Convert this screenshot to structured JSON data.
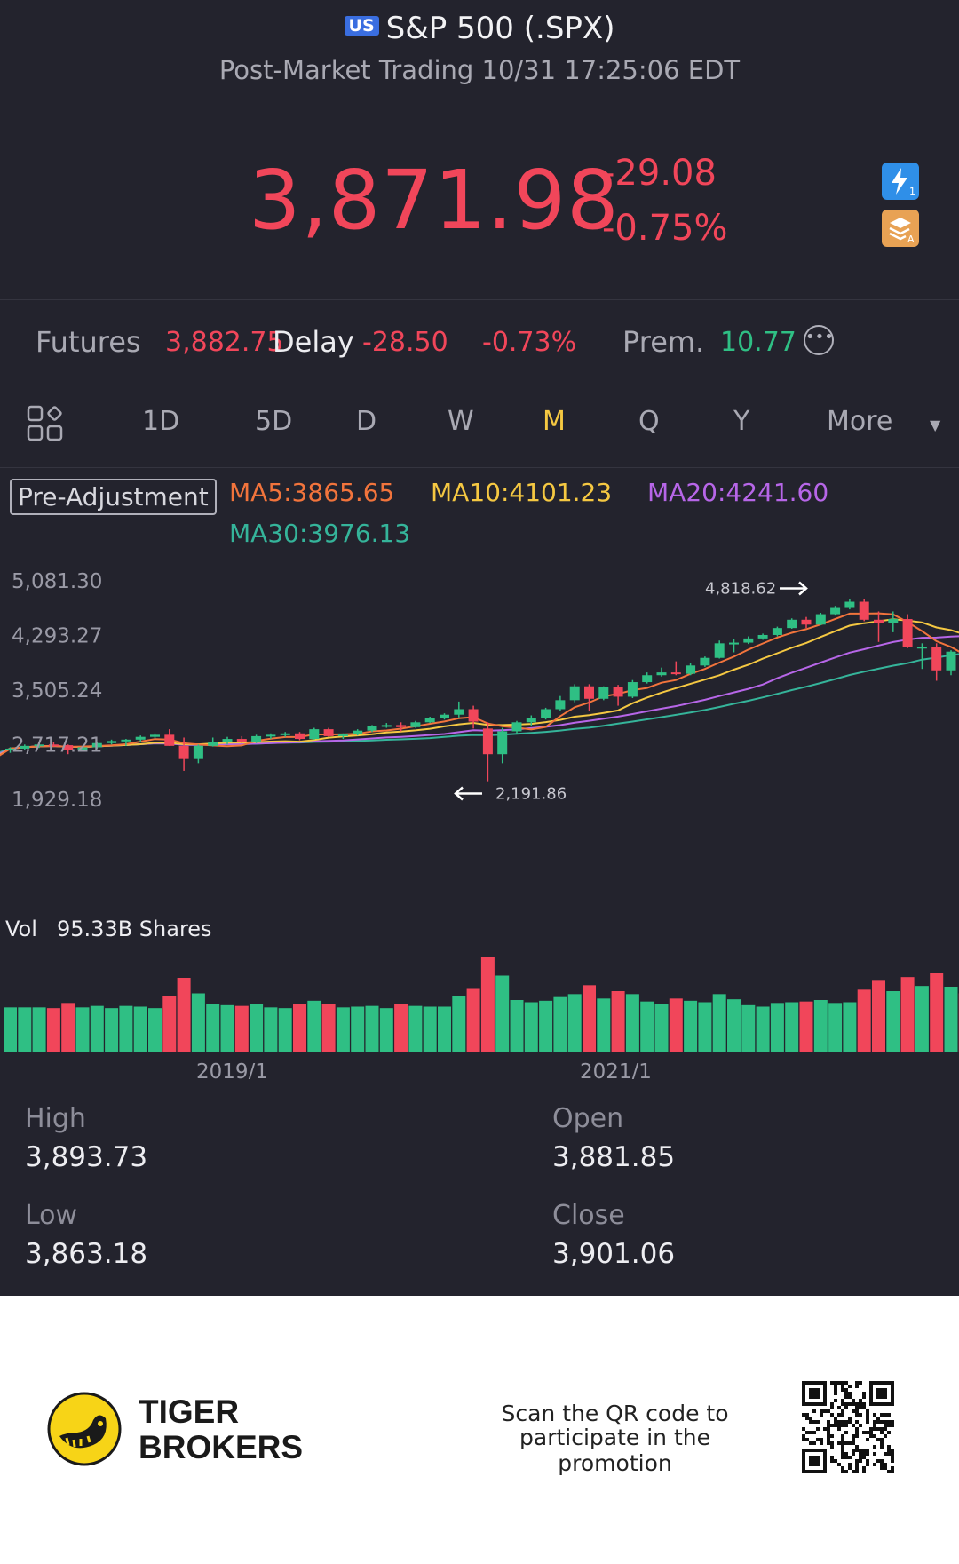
{
  "header": {
    "market_badge": "US",
    "title": "S&P 500 (.SPX)",
    "subtitle": "Post-Market Trading 10/31 17:25:06 EDT",
    "price": "3,871.98",
    "change": "-29.08",
    "change_pct": "-0.75%",
    "icons": [
      "lightning-1-icon",
      "stack-a-icon"
    ]
  },
  "futures": {
    "label": "Futures",
    "price": "3,882.75",
    "delay": "Delay",
    "change": "-28.50",
    "change_pct": "-0.73%",
    "prem_label": "Prem.",
    "prem_value": "10.77",
    "more_icon": "ellipsis-circle-icon"
  },
  "tabs": {
    "items": [
      "1D",
      "5D",
      "D",
      "W",
      "M",
      "Q",
      "Y",
      "More"
    ],
    "active": "M",
    "layout_icon": "grid-layout-icon"
  },
  "legend": {
    "adjust": "Pre-Adjustment",
    "ma5": "MA5:3865.65",
    "ma10": "MA10:4101.23",
    "ma20": "MA20:4241.60",
    "ma30": "MA30:3976.13"
  },
  "colors": {
    "up": "#2fbf84",
    "down": "#f1465a",
    "ma5": "#f2743c",
    "ma10": "#f5c842",
    "ma20": "#b766e8",
    "ma30": "#35b49a",
    "active_tab": "#f5c842"
  },
  "chart_data": {
    "type": "candlestick",
    "y_ticks": [
      "5,081.30",
      "4,293.27",
      "3,505.24",
      "2,717.21",
      "1,929.18"
    ],
    "ylim": [
      1929.18,
      5081.3
    ],
    "x_ticks": [
      "2019/1",
      "2021/1"
    ],
    "high_marker": "4,818.62",
    "low_marker": "2,191.86",
    "vol_label": "Vol",
    "vol_value": "95.33B Shares",
    "candles_ohlc": [
      [
        2640,
        2680,
        2600,
        2660
      ],
      [
        2660,
        2720,
        2640,
        2700
      ],
      [
        2700,
        2750,
        2670,
        2720
      ],
      [
        2720,
        2760,
        2690,
        2710
      ],
      [
        2710,
        2720,
        2580,
        2640
      ],
      [
        2640,
        2700,
        2620,
        2680
      ],
      [
        2680,
        2760,
        2660,
        2740
      ],
      [
        2740,
        2790,
        2720,
        2770
      ],
      [
        2770,
        2800,
        2700,
        2790
      ],
      [
        2790,
        2850,
        2760,
        2830
      ],
      [
        2830,
        2880,
        2810,
        2860
      ],
      [
        2860,
        2940,
        2700,
        2700
      ],
      [
        2700,
        2820,
        2340,
        2510
      ],
      [
        2510,
        2720,
        2450,
        2700
      ],
      [
        2700,
        2820,
        2690,
        2760
      ],
      [
        2760,
        2830,
        2720,
        2800
      ],
      [
        2800,
        2840,
        2740,
        2760
      ],
      [
        2760,
        2860,
        2740,
        2840
      ],
      [
        2840,
        2880,
        2800,
        2860
      ],
      [
        2860,
        2900,
        2830,
        2880
      ],
      [
        2880,
        2900,
        2780,
        2800
      ],
      [
        2800,
        2960,
        2790,
        2940
      ],
      [
        2940,
        2960,
        2830,
        2840
      ],
      [
        2840,
        2880,
        2800,
        2870
      ],
      [
        2870,
        2940,
        2850,
        2920
      ],
      [
        2920,
        3000,
        2900,
        2980
      ],
      [
        2980,
        3030,
        2960,
        3000
      ],
      [
        3000,
        3040,
        2910,
        2970
      ],
      [
        2970,
        3060,
        2960,
        3040
      ],
      [
        3040,
        3120,
        3030,
        3100
      ],
      [
        3100,
        3170,
        3080,
        3150
      ],
      [
        3150,
        3340,
        3110,
        3230
      ],
      [
        3230,
        3280,
        2950,
        3050
      ],
      [
        2950,
        3040,
        2190,
        2580
      ],
      [
        2580,
        2960,
        2450,
        2910
      ],
      [
        2910,
        3060,
        2880,
        3040
      ],
      [
        3040,
        3140,
        2990,
        3100
      ],
      [
        3100,
        3250,
        3080,
        3230
      ],
      [
        3230,
        3420,
        3200,
        3360
      ],
      [
        3360,
        3590,
        3330,
        3560
      ],
      [
        3560,
        3590,
        3210,
        3380
      ],
      [
        3380,
        3560,
        3360,
        3550
      ],
      [
        3550,
        3580,
        3280,
        3410
      ],
      [
        3410,
        3650,
        3390,
        3620
      ],
      [
        3620,
        3760,
        3600,
        3720
      ],
      [
        3720,
        3830,
        3700,
        3760
      ],
      [
        3760,
        3920,
        3720,
        3740
      ],
      [
        3740,
        3890,
        3720,
        3860
      ],
      [
        3860,
        3990,
        3840,
        3970
      ],
      [
        3970,
        4220,
        3960,
        4180
      ],
      [
        4180,
        4240,
        4050,
        4190
      ],
      [
        4190,
        4280,
        4170,
        4250
      ],
      [
        4250,
        4320,
        4230,
        4300
      ],
      [
        4300,
        4420,
        4280,
        4400
      ],
      [
        4400,
        4540,
        4390,
        4520
      ],
      [
        4520,
        4560,
        4400,
        4450
      ],
      [
        4450,
        4620,
        4440,
        4600
      ],
      [
        4600,
        4720,
        4580,
        4690
      ],
      [
        4690,
        4820,
        4670,
        4780
      ],
      [
        4780,
        4820,
        4500,
        4520
      ],
      [
        4520,
        4640,
        4200,
        4470
      ],
      [
        4470,
        4640,
        4340,
        4530
      ],
      [
        4530,
        4600,
        4110,
        4130
      ],
      [
        4130,
        4180,
        3810,
        4130
      ],
      [
        4130,
        4180,
        3640,
        3790
      ],
      [
        3790,
        4080,
        3720,
        4060
      ],
      [
        4060,
        4150,
        3880,
        3930
      ],
      [
        3930,
        3980,
        3580,
        3580
      ],
      [
        3580,
        3910,
        3480,
        3870
      ]
    ]
  },
  "stats": {
    "high_label": "High",
    "high": "3,893.73",
    "open_label": "Open",
    "open": "3,881.85",
    "low_label": "Low",
    "low": "3,863.18",
    "close_label": "Close",
    "close": "3,901.06"
  },
  "footer": {
    "brand_line1": "TIGER",
    "brand_line2": "BROKERS",
    "promo_line1": "Scan the QR code to",
    "promo_line2": "participate in the promotion",
    "logo_icon": "tiger-paw-logo",
    "qr_icon": "qr-code-icon"
  }
}
